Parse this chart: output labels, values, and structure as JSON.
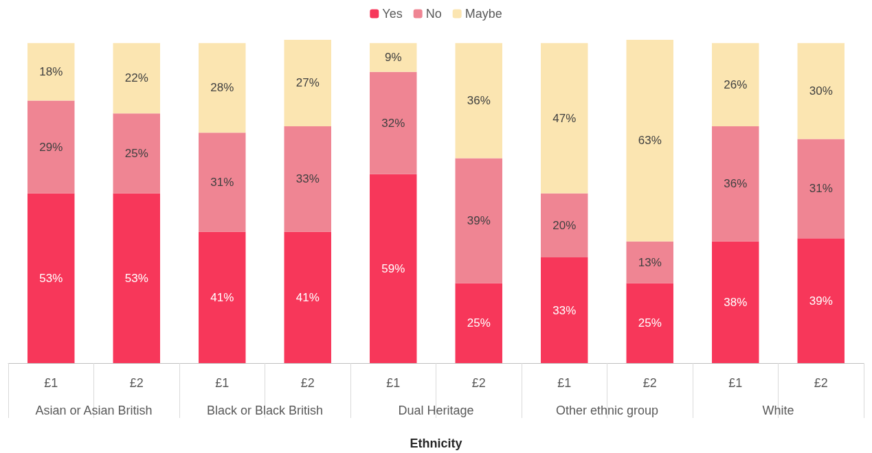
{
  "chart_data": {
    "type": "bar",
    "stacked": true,
    "xlabel": "Ethnicity",
    "categories": [
      "£1",
      "£2",
      "£1",
      "£2",
      "£1",
      "£2",
      "£1",
      "£2",
      "£1",
      "£2"
    ],
    "annotations": [
      "Asian or Asian British",
      "Black or Black British",
      "Dual Heritage",
      "Other ethnic group",
      "White"
    ],
    "series": [
      {
        "name": "Yes",
        "color": "#f7375a",
        "values": [
          53,
          53,
          41,
          41,
          59,
          25,
          33,
          25,
          38,
          39
        ],
        "value_labels": [
          "53%",
          "53%",
          "41%",
          "41%",
          "59%",
          "25%",
          "33%",
          "25%",
          "38%",
          "39%"
        ]
      },
      {
        "name": "No",
        "color": "#ef8593",
        "values": [
          29,
          25,
          31,
          33,
          32,
          39,
          20,
          13,
          36,
          31
        ],
        "value_labels": [
          "29%",
          "25%",
          "31%",
          "33%",
          "32%",
          "39%",
          "20%",
          "13%",
          "36%",
          "31%"
        ]
      },
      {
        "name": "Maybe",
        "color": "#fbe5b1",
        "values": [
          18,
          22,
          28,
          27,
          9,
          36,
          47,
          63,
          26,
          30
        ],
        "value_labels": [
          "18%",
          "22%",
          "28%",
          "27%",
          "9%",
          "36%",
          "47%",
          "63%",
          "26%",
          "30%"
        ]
      }
    ],
    "tick_labels": "x",
    "legend": "top"
  }
}
